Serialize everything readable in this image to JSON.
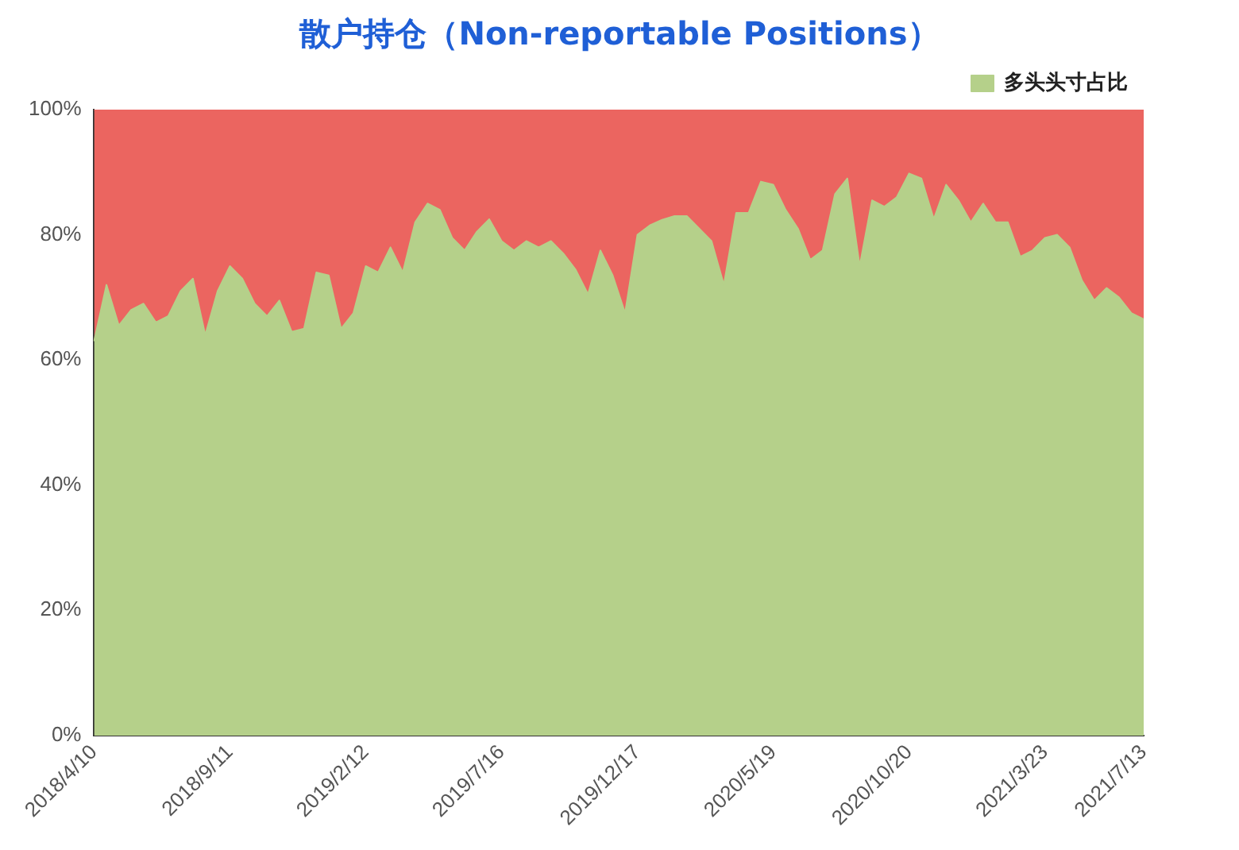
{
  "chart_data": {
    "type": "area",
    "title": "散户持仓（Non-reportable Positions）",
    "categories": [
      "2018/4/10",
      null,
      null,
      null,
      null,
      null,
      null,
      null,
      null,
      null,
      null,
      "2018/9/11",
      null,
      null,
      null,
      null,
      null,
      null,
      null,
      null,
      null,
      null,
      "2019/2/12",
      null,
      null,
      null,
      null,
      null,
      null,
      null,
      null,
      null,
      null,
      "2019/7/16",
      null,
      null,
      null,
      null,
      null,
      null,
      null,
      null,
      null,
      null,
      "2019/12/17",
      null,
      null,
      null,
      null,
      null,
      null,
      null,
      null,
      null,
      null,
      "2020/5/19",
      null,
      null,
      null,
      null,
      null,
      null,
      null,
      null,
      null,
      null,
      "2020/10/20",
      null,
      null,
      null,
      null,
      null,
      null,
      null,
      null,
      null,
      null,
      "2021/3/23",
      null,
      null,
      null,
      null,
      null,
      null,
      null,
      "2021/7/13"
    ],
    "stacked": true,
    "series": [
      {
        "name": "多头头寸占比",
        "color": "#b5d08a",
        "values": [
          63,
          72,
          65.5,
          68,
          69,
          66,
          67,
          71,
          73,
          64,
          71,
          75,
          73,
          69,
          67,
          69.5,
          64.5,
          65,
          74,
          73.5,
          65,
          67.5,
          75,
          74,
          78,
          74,
          82,
          85,
          84,
          79.5,
          77.5,
          80.5,
          82.5,
          79,
          77.5,
          79,
          78,
          79,
          77,
          74.4,
          70.5,
          77.5,
          73.5,
          67.5,
          80,
          81.5,
          82.4,
          83,
          83,
          81,
          79,
          72,
          83.5,
          83.5,
          88.5,
          88,
          84,
          81,
          76,
          77.5,
          86.5,
          89,
          75,
          85.5,
          84.5,
          86,
          89.8,
          89,
          82.5,
          88,
          85.5,
          82,
          85,
          82,
          82,
          76.5,
          77.5,
          79.5,
          80,
          78,
          72.7,
          69.5,
          71.5,
          70,
          67.5,
          66.5
        ]
      },
      {
        "color": "#eb6560",
        "values": [
          37,
          28,
          34.5,
          32,
          31,
          34,
          33,
          29,
          27,
          36,
          29,
          25,
          27,
          31,
          33,
          30.5,
          35.5,
          35,
          26,
          26.5,
          35,
          32.5,
          25,
          26,
          22,
          26,
          18,
          15,
          16,
          20.5,
          22.5,
          19.5,
          17.5,
          21,
          22.5,
          21,
          22,
          21,
          23,
          25.6,
          29.5,
          22.5,
          26.5,
          32.5,
          20,
          18.5,
          17.6,
          17,
          17,
          19,
          21,
          28,
          16.5,
          16.5,
          11.5,
          12,
          16,
          19,
          24,
          22.5,
          13.5,
          11,
          25,
          14.5,
          15.5,
          14,
          10.2,
          11,
          17.5,
          12,
          14.5,
          18,
          15,
          18,
          18,
          23.5,
          22.5,
          20.5,
          20,
          22,
          27.3,
          30.5,
          28.5,
          30,
          32.5,
          33.5
        ]
      }
    ],
    "ylim": [
      0,
      100
    ],
    "yticks": [
      {
        "value": 0,
        "label": "0%"
      },
      {
        "value": 20,
        "label": "20%"
      },
      {
        "value": 40,
        "label": "40%"
      },
      {
        "value": 60,
        "label": "60%"
      },
      {
        "value": 80,
        "label": "80%"
      },
      {
        "value": 100,
        "label": "100%"
      }
    ],
    "legend": "top right",
    "grid": false
  }
}
